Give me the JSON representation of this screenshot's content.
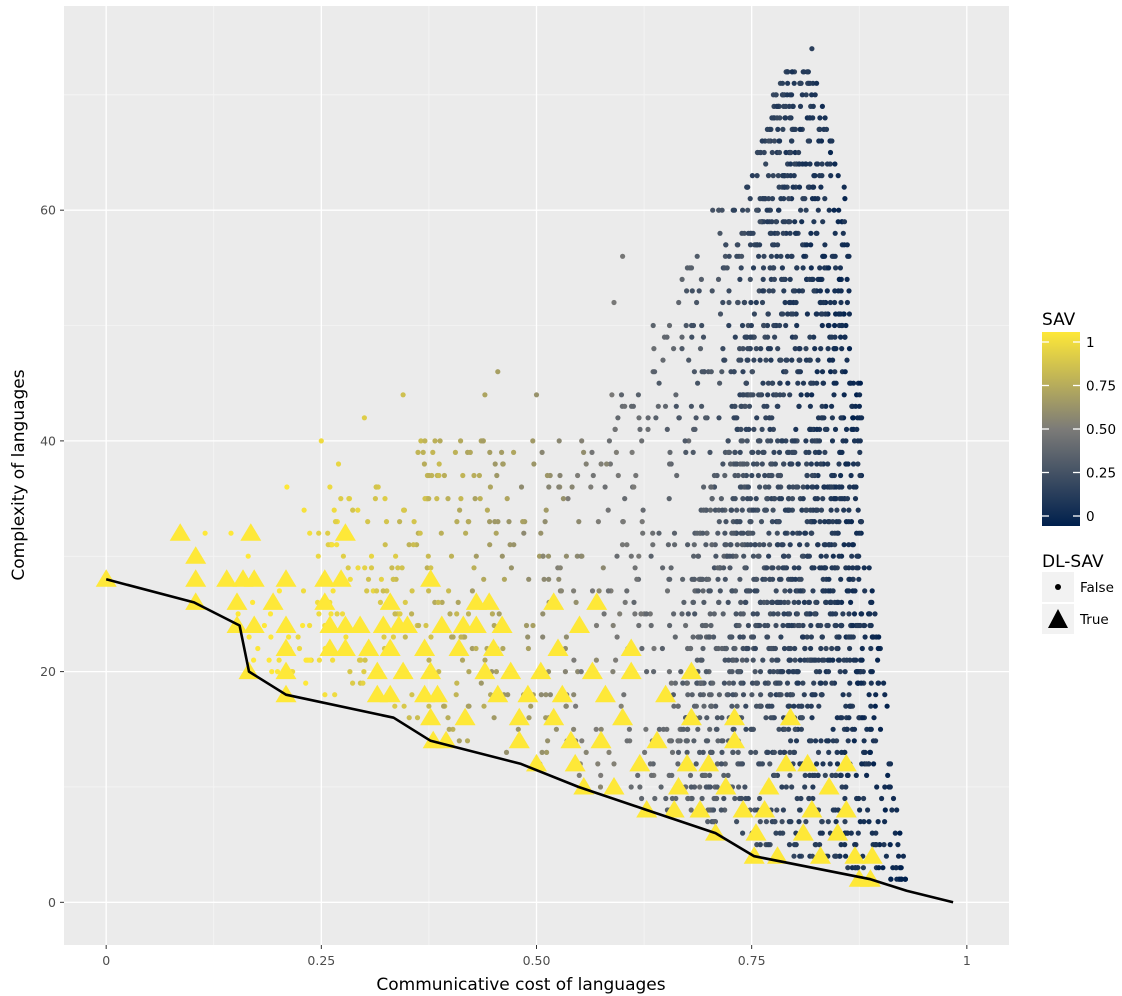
{
  "chart_data": {
    "type": "scatter",
    "title": "",
    "xlabel": "Communicative cost of languages",
    "ylabel": "Complexity of languages",
    "xlim": [
      -0.049,
      1.049
    ],
    "ylim": [
      -3.7,
      77.7
    ],
    "x_ticks": [
      0,
      0.25,
      0.5,
      0.75,
      1
    ],
    "x_tick_labels": [
      "0",
      "0.25",
      "0.50",
      "0.75",
      "1"
    ],
    "y_ticks": [
      0,
      20,
      40,
      60
    ],
    "y_tick_labels": [
      "0",
      "20",
      "40",
      "60"
    ],
    "grid": true,
    "color_legend": {
      "title": "SAV",
      "colormap": "cividis",
      "low_color": "#00204d",
      "mid_color": "#7c7b78",
      "high_color": "#fee838",
      "ticks": [
        0,
        0.25,
        0.5,
        0.75,
        1
      ],
      "tick_labels": [
        "0",
        "0.25",
        "0.50",
        "0.75",
        "1"
      ],
      "placement": "right"
    },
    "shape_legend": {
      "title": "DL-SAV",
      "entries": [
        {
          "label": "False",
          "shape": "circle"
        },
        {
          "label": "True",
          "shape": "triangle"
        }
      ],
      "placement": "right"
    },
    "pareto_frontier": {
      "color": "#000000",
      "x": [
        0.0,
        0.102,
        0.155,
        0.166,
        0.209,
        0.334,
        0.377,
        0.482,
        0.549,
        0.628,
        0.708,
        0.753,
        0.888,
        0.93,
        0.984
      ],
      "y": [
        28,
        26,
        24,
        20,
        18,
        16,
        14,
        12,
        10,
        8,
        6,
        4,
        2,
        1,
        0
      ]
    },
    "true_points": [
      [
        0.0,
        28
      ],
      [
        0.086,
        32
      ],
      [
        0.104,
        30
      ],
      [
        0.104,
        28
      ],
      [
        0.104,
        26
      ],
      [
        0.14,
        28
      ],
      [
        0.152,
        26
      ],
      [
        0.152,
        24
      ],
      [
        0.159,
        28
      ],
      [
        0.168,
        32
      ],
      [
        0.172,
        28
      ],
      [
        0.172,
        24
      ],
      [
        0.166,
        20
      ],
      [
        0.194,
        26
      ],
      [
        0.209,
        28
      ],
      [
        0.209,
        24
      ],
      [
        0.209,
        22
      ],
      [
        0.209,
        20
      ],
      [
        0.209,
        18
      ],
      [
        0.254,
        28
      ],
      [
        0.254,
        26
      ],
      [
        0.26,
        24
      ],
      [
        0.26,
        22
      ],
      [
        0.273,
        28
      ],
      [
        0.278,
        32
      ],
      [
        0.278,
        24
      ],
      [
        0.278,
        22
      ],
      [
        0.295,
        24
      ],
      [
        0.305,
        22
      ],
      [
        0.315,
        20
      ],
      [
        0.315,
        18
      ],
      [
        0.322,
        24
      ],
      [
        0.33,
        26
      ],
      [
        0.33,
        22
      ],
      [
        0.33,
        18
      ],
      [
        0.34,
        24
      ],
      [
        0.345,
        20
      ],
      [
        0.35,
        24
      ],
      [
        0.37,
        22
      ],
      [
        0.37,
        18
      ],
      [
        0.377,
        28
      ],
      [
        0.377,
        20
      ],
      [
        0.377,
        16
      ],
      [
        0.38,
        14
      ],
      [
        0.385,
        18
      ],
      [
        0.39,
        24
      ],
      [
        0.395,
        14
      ],
      [
        0.41,
        22
      ],
      [
        0.415,
        24
      ],
      [
        0.417,
        16
      ],
      [
        0.43,
        24
      ],
      [
        0.44,
        20
      ],
      [
        0.445,
        26
      ],
      [
        0.45,
        22
      ],
      [
        0.455,
        18
      ],
      [
        0.46,
        24
      ],
      [
        0.47,
        20
      ],
      [
        0.48,
        16
      ],
      [
        0.48,
        14
      ],
      [
        0.49,
        18
      ],
      [
        0.5,
        12
      ],
      [
        0.505,
        20
      ],
      [
        0.52,
        16
      ],
      [
        0.525,
        22
      ],
      [
        0.53,
        18
      ],
      [
        0.54,
        14
      ],
      [
        0.545,
        12
      ],
      [
        0.55,
        24
      ],
      [
        0.555,
        10
      ],
      [
        0.565,
        20
      ],
      [
        0.575,
        14
      ],
      [
        0.58,
        18
      ],
      [
        0.59,
        10
      ],
      [
        0.6,
        16
      ],
      [
        0.61,
        22
      ],
      [
        0.62,
        12
      ],
      [
        0.628,
        8
      ],
      [
        0.64,
        14
      ],
      [
        0.65,
        18
      ],
      [
        0.66,
        8
      ],
      [
        0.665,
        10
      ],
      [
        0.675,
        12
      ],
      [
        0.68,
        16
      ],
      [
        0.69,
        8
      ],
      [
        0.7,
        12
      ],
      [
        0.708,
        6
      ],
      [
        0.72,
        10
      ],
      [
        0.73,
        14
      ],
      [
        0.74,
        8
      ],
      [
        0.753,
        4
      ],
      [
        0.755,
        6
      ],
      [
        0.765,
        8
      ],
      [
        0.77,
        10
      ],
      [
        0.78,
        4
      ],
      [
        0.79,
        12
      ],
      [
        0.81,
        6
      ],
      [
        0.82,
        8
      ],
      [
        0.83,
        4
      ],
      [
        0.84,
        10
      ],
      [
        0.85,
        6
      ],
      [
        0.86,
        8
      ],
      [
        0.87,
        4
      ],
      [
        0.875,
        2
      ],
      [
        0.888,
        2
      ],
      [
        0.89,
        4
      ],
      [
        0.86,
        12
      ],
      [
        0.815,
        12
      ],
      [
        0.795,
        16
      ],
      [
        0.73,
        16
      ],
      [
        0.68,
        20
      ],
      [
        0.61,
        20
      ],
      [
        0.57,
        26
      ],
      [
        0.52,
        26
      ],
      [
        0.43,
        26
      ]
    ]
  }
}
